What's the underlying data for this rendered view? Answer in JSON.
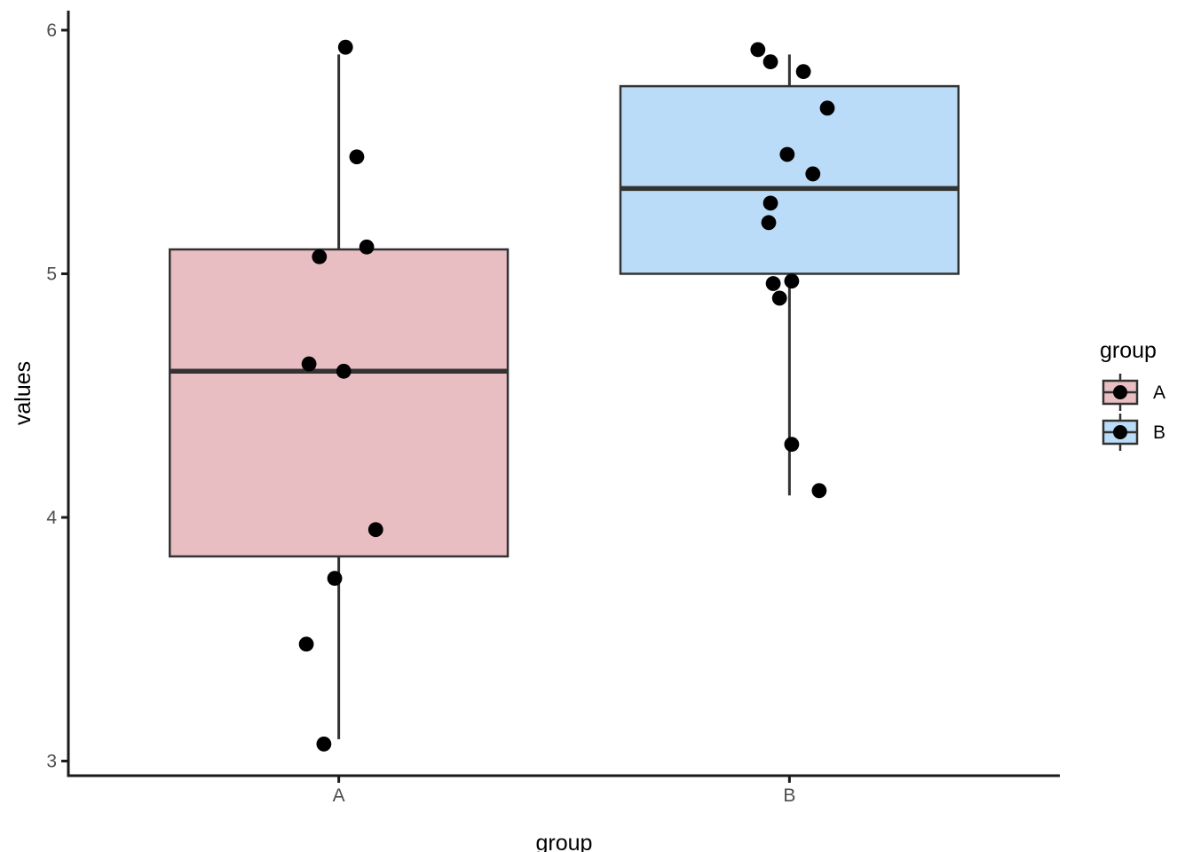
{
  "chart_data": {
    "type": "boxplot",
    "title": "",
    "xlabel": "group",
    "ylabel": "values",
    "y_ticks": [
      3,
      4,
      5,
      6
    ],
    "ylim": [
      2.94,
      6.08
    ],
    "x_categories": [
      "A",
      "B"
    ],
    "grid": false,
    "legend": {
      "title": "group",
      "position": "right",
      "entries": [
        {
          "label": "A",
          "fill": "#E8BEC3"
        },
        {
          "label": "B",
          "fill": "#BADCF8"
        }
      ]
    },
    "groups": [
      {
        "label": "A",
        "fill": "#E8BEC3",
        "stats": {
          "whisker_low": 3.09,
          "q1": 3.84,
          "median": 4.6,
          "q3": 5.1,
          "whisker_high": 5.9
        },
        "points": [
          {
            "value": 5.93,
            "jitter": 0.015
          },
          {
            "value": 5.48,
            "jitter": 0.04
          },
          {
            "value": 5.11,
            "jitter": 0.062
          },
          {
            "value": 5.07,
            "jitter": -0.043
          },
          {
            "value": 4.63,
            "jitter": -0.066
          },
          {
            "value": 4.6,
            "jitter": 0.011
          },
          {
            "value": 3.95,
            "jitter": 0.082
          },
          {
            "value": 3.75,
            "jitter": -0.009
          },
          {
            "value": 3.48,
            "jitter": -0.072
          },
          {
            "value": 3.07,
            "jitter": -0.033
          }
        ]
      },
      {
        "label": "B",
        "fill": "#BADCF8",
        "stats": {
          "whisker_low": 4.09,
          "q1": 5.0,
          "median": 5.35,
          "q3": 5.77,
          "whisker_high": 5.9
        },
        "points": [
          {
            "value": 5.92,
            "jitter": -0.07
          },
          {
            "value": 5.87,
            "jitter": -0.042
          },
          {
            "value": 5.83,
            "jitter": 0.031
          },
          {
            "value": 5.68,
            "jitter": 0.084
          },
          {
            "value": 5.49,
            "jitter": -0.005
          },
          {
            "value": 5.41,
            "jitter": 0.052
          },
          {
            "value": 5.29,
            "jitter": -0.042
          },
          {
            "value": 5.21,
            "jitter": -0.046
          },
          {
            "value": 4.97,
            "jitter": 0.005
          },
          {
            "value": 4.96,
            "jitter": -0.036
          },
          {
            "value": 4.9,
            "jitter": -0.022
          },
          {
            "value": 4.3,
            "jitter": 0.005
          },
          {
            "value": 4.11,
            "jitter": 0.066
          }
        ]
      }
    ],
    "style": {
      "box_border_color": "#333333",
      "median_color": "#333333",
      "point_color": "#000000",
      "axis_color": "#1A1A1A",
      "tick_label_color": "#4D4D4D",
      "axis_title_color": "#000000",
      "legend_text_color": "#000000",
      "background": "#FFFFFF"
    }
  }
}
